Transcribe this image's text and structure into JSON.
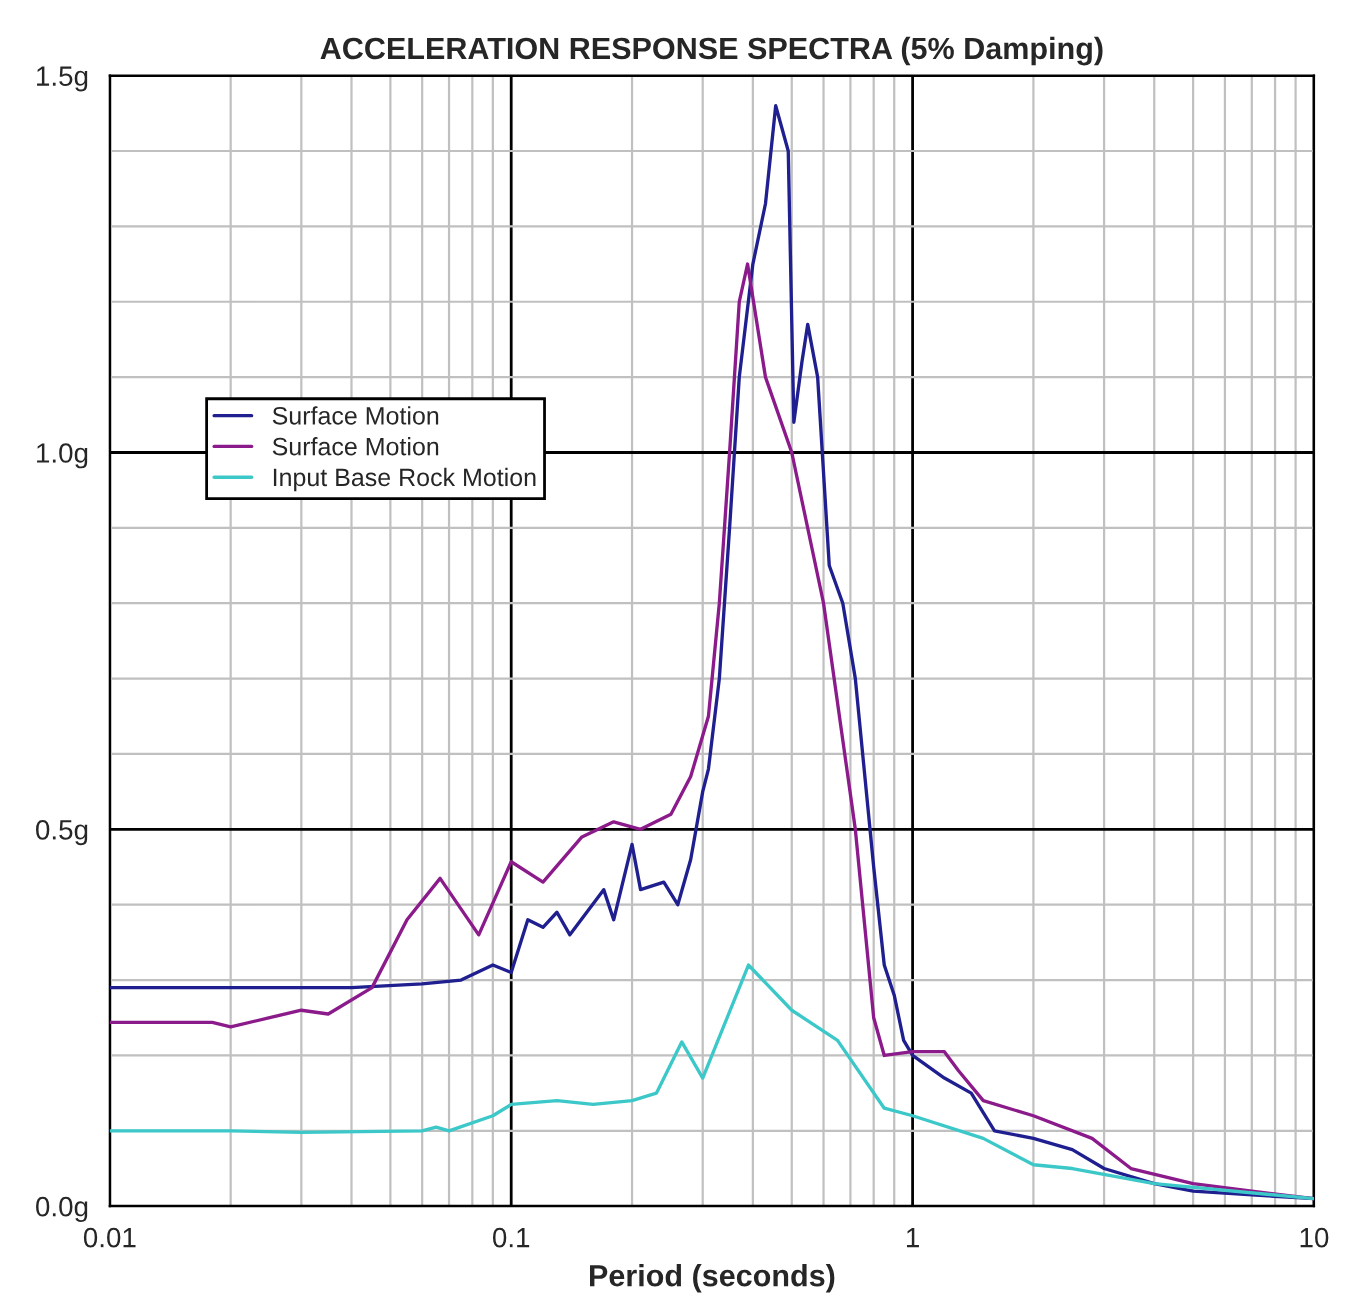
{
  "chart_data": {
    "type": "line",
    "title": "ACCELERATION RESPONSE SPECTRA (5% Damping)",
    "xlabel": "Period (seconds)",
    "log": "x",
    "xlim": [
      0.01,
      10
    ],
    "xticks": [
      {
        "value": 0.01,
        "label": "0.01"
      },
      {
        "value": 0.1,
        "label": "0.1"
      },
      {
        "value": 1,
        "label": "1"
      },
      {
        "value": 10,
        "label": "10"
      }
    ],
    "ylim": [
      0,
      1.5
    ],
    "yticks": [
      {
        "value": 0,
        "label": "0.0g"
      },
      {
        "value": 0.5,
        "label": "0.5g"
      },
      {
        "value": 1.0,
        "label": "1.0g"
      },
      {
        "value": 1.5,
        "label": "1.5g"
      }
    ],
    "grid": true,
    "legend": "left",
    "line_style": "solid",
    "marker": "none",
    "series": [
      {
        "name": "Surface Motion",
        "color": "#1f1f8f",
        "x": [
          0.01,
          0.02,
          0.04,
          0.06,
          0.075,
          0.09,
          0.1,
          0.11,
          0.12,
          0.13,
          0.14,
          0.17,
          0.18,
          0.2,
          0.21,
          0.24,
          0.26,
          0.28,
          0.3,
          0.31,
          0.33,
          0.35,
          0.37,
          0.4,
          0.43,
          0.456,
          0.49,
          0.506,
          0.53,
          0.548,
          0.58,
          0.62,
          0.67,
          0.72,
          0.8,
          0.85,
          0.9,
          0.95,
          1.0,
          1.2,
          1.4,
          1.6,
          2,
          2.5,
          3,
          4,
          5,
          7,
          10
        ],
        "values": [
          0.29,
          0.29,
          0.29,
          0.295,
          0.3,
          0.32,
          0.31,
          0.38,
          0.37,
          0.39,
          0.36,
          0.42,
          0.38,
          0.48,
          0.42,
          0.43,
          0.4,
          0.46,
          0.55,
          0.58,
          0.7,
          0.9,
          1.1,
          1.25,
          1.33,
          1.46,
          1.4,
          1.04,
          1.12,
          1.17,
          1.1,
          0.85,
          0.8,
          0.7,
          0.45,
          0.32,
          0.28,
          0.22,
          0.2,
          0.17,
          0.15,
          0.1,
          0.09,
          0.075,
          0.05,
          0.03,
          0.02,
          0.015,
          0.01
        ]
      },
      {
        "name": "Surface Motion",
        "color": "#8b1a8b",
        "x": [
          0.01,
          0.018,
          0.02,
          0.03,
          0.035,
          0.045,
          0.055,
          0.0665,
          0.083,
          0.1,
          0.12,
          0.15,
          0.18,
          0.21,
          0.25,
          0.28,
          0.31,
          0.33,
          0.35,
          0.37,
          0.388,
          0.43,
          0.5,
          0.6,
          0.72,
          0.8,
          0.85,
          1.0,
          1.2,
          1.3,
          1.5,
          2,
          2.8,
          3.5,
          5,
          7,
          10
        ],
        "values": [
          0.244,
          0.244,
          0.238,
          0.26,
          0.255,
          0.29,
          0.38,
          0.435,
          0.36,
          0.457,
          0.43,
          0.49,
          0.51,
          0.5,
          0.52,
          0.57,
          0.65,
          0.8,
          1.0,
          1.2,
          1.25,
          1.1,
          1.0,
          0.8,
          0.5,
          0.25,
          0.2,
          0.205,
          0.205,
          0.18,
          0.14,
          0.12,
          0.09,
          0.05,
          0.03,
          0.02,
          0.01
        ]
      },
      {
        "name": "Input Base Rock Motion",
        "color": "#3cc8c8",
        "x": [
          0.01,
          0.02,
          0.03,
          0.06,
          0.065,
          0.07,
          0.09,
          0.1,
          0.13,
          0.16,
          0.2,
          0.23,
          0.266,
          0.3,
          0.39,
          0.5,
          0.65,
          0.85,
          1.0,
          1.5,
          2,
          2.5,
          4,
          10
        ],
        "values": [
          0.1,
          0.1,
          0.098,
          0.1,
          0.105,
          0.1,
          0.12,
          0.135,
          0.14,
          0.135,
          0.14,
          0.15,
          0.218,
          0.17,
          0.32,
          0.26,
          0.22,
          0.13,
          0.12,
          0.09,
          0.055,
          0.05,
          0.03,
          0.01
        ]
      }
    ]
  }
}
